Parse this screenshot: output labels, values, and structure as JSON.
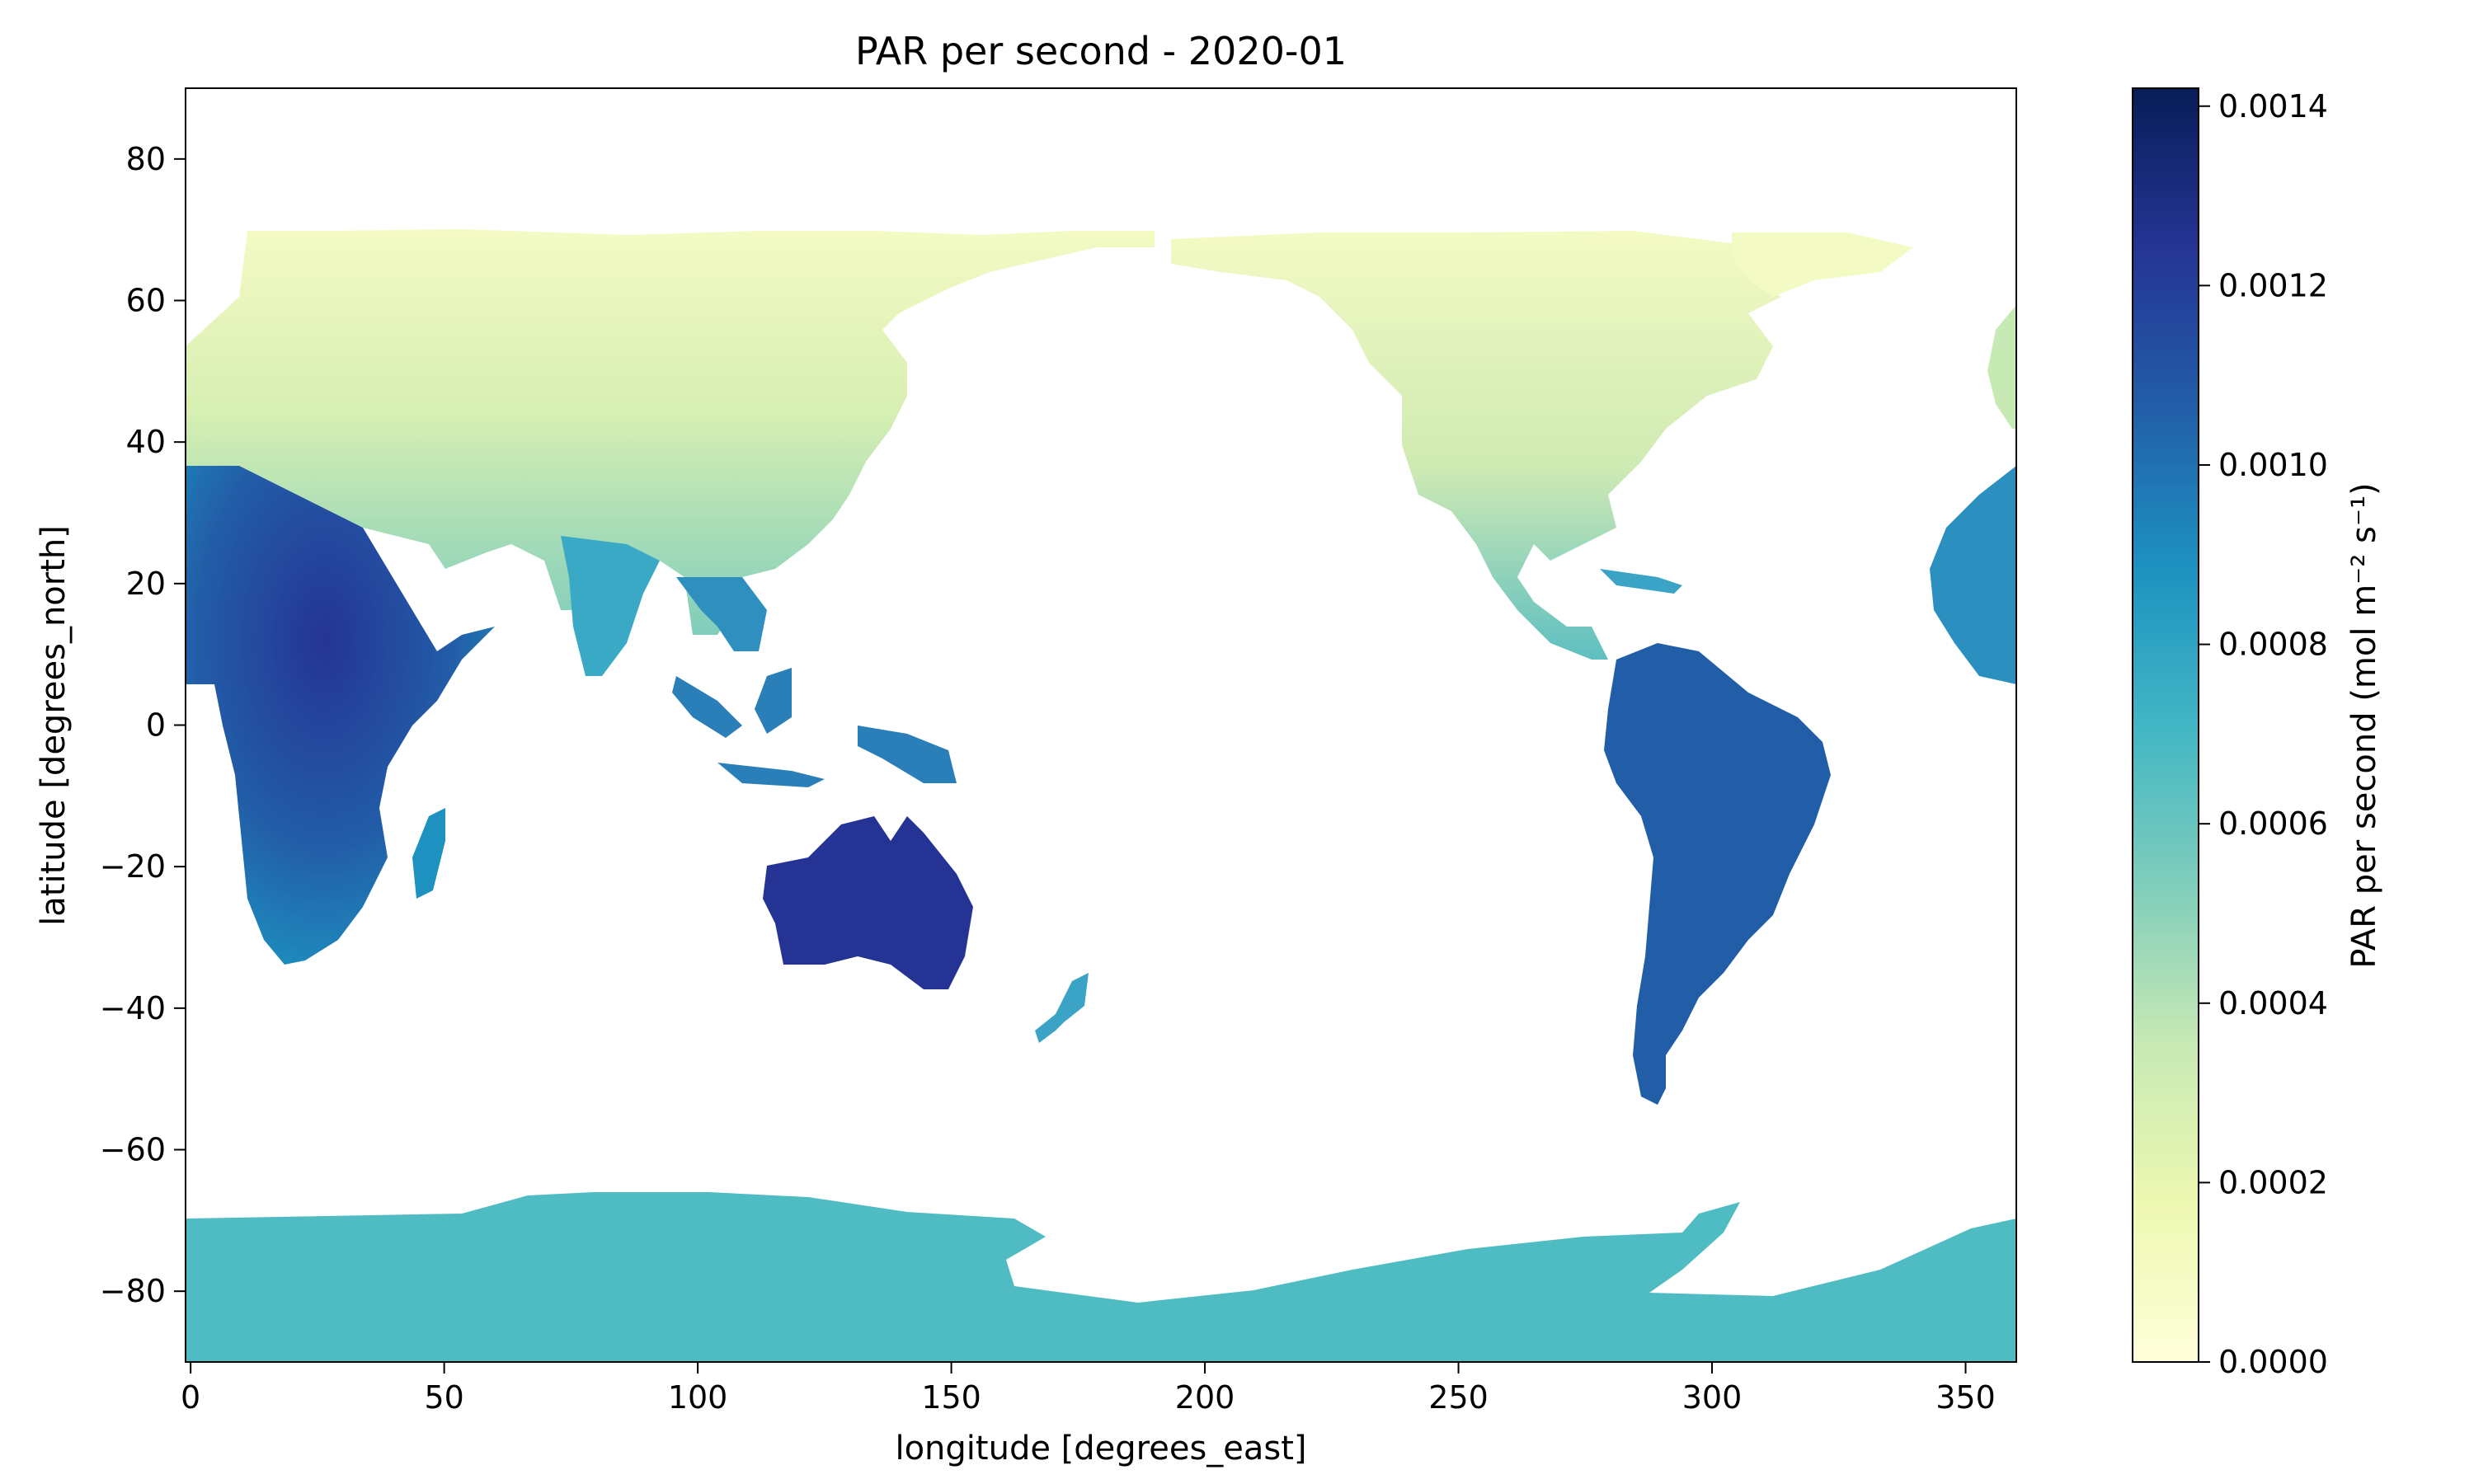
{
  "chart_data": {
    "type": "heatmap",
    "title": "PAR per second - 2020-01",
    "xlabel": "longitude [degrees_east]",
    "ylabel": "latitude [degrees_north]",
    "xlim": [
      -1,
      360
    ],
    "ylim": [
      -90,
      90
    ],
    "xticks": [
      0,
      50,
      100,
      150,
      200,
      250,
      300,
      350
    ],
    "yticks": [
      -80,
      -60,
      -40,
      -20,
      0,
      20,
      40,
      60,
      80
    ],
    "xtick_labels": [
      "0",
      "50",
      "100",
      "150",
      "200",
      "250",
      "300",
      "350"
    ],
    "ytick_labels": [
      "−80",
      "−60",
      "−40",
      "−20",
      "0",
      "20",
      "40",
      "60",
      "80"
    ],
    "grid": false,
    "colormap": "YlGnBu",
    "colorbar": {
      "label": "PAR per second (mol m⁻² s⁻¹)",
      "range": [
        0.0,
        0.00142
      ],
      "ticks": [
        0.0,
        0.0002,
        0.0004,
        0.0006,
        0.0008,
        0.001,
        0.0012,
        0.0014
      ],
      "tick_labels": [
        "0.0000",
        "0.0002",
        "0.0004",
        "0.0006",
        "0.0008",
        "0.0010",
        "0.0012",
        "0.0014"
      ],
      "position": "right"
    },
    "colors": [
      "#ffffd9",
      "#edf8b1",
      "#c7e9b4",
      "#7fcdbb",
      "#41b6c4",
      "#1d91c0",
      "#225ea8",
      "#253494",
      "#081d58"
    ],
    "regions": [
      {
        "name": "Africa",
        "value": 0.00095
      },
      {
        "name": "Australia",
        "value": 0.00115
      },
      {
        "name": "South America",
        "value": 0.00105
      },
      {
        "name": "Antarctica",
        "value": 0.00065
      },
      {
        "name": "Eurasia north",
        "value": 0.0002
      },
      {
        "name": "North America north",
        "value": 0.0002
      }
    ]
  }
}
